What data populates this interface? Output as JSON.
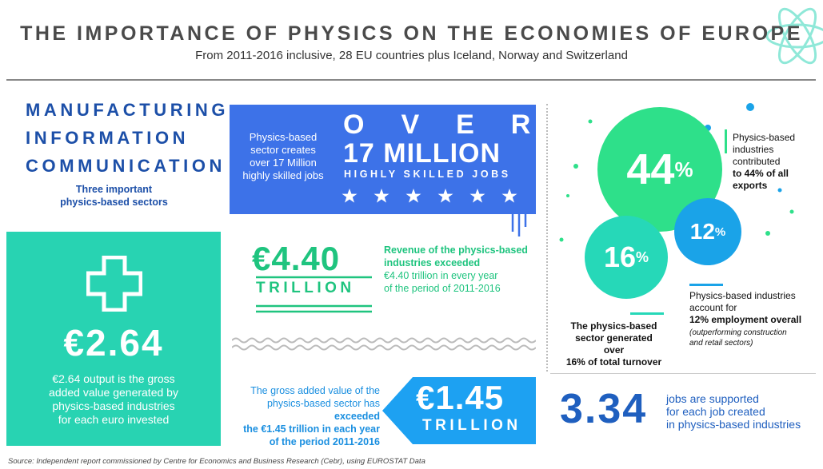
{
  "header": {
    "title": "THE IMPORTANCE OF PHYSICS ON THE ECONOMIES OF EUROPE",
    "subtitle": "From 2011-2016 inclusive, 28 EU countries plus Iceland, Norway and Switzerland"
  },
  "sectors": {
    "lines": [
      "MANUFACTURING",
      "INFORMATION",
      "COMMUNICATION"
    ],
    "caption": [
      "Three important",
      "physics-based sectors"
    ]
  },
  "jobs": {
    "text": [
      "Physics-based",
      "sector creates",
      "over 17 Million",
      "highly skilled jobs"
    ],
    "over": "OVER",
    "figure": "17 MILLION",
    "label": "HIGHLY SKILLED JOBS"
  },
  "gva": {
    "figure": "€2.64",
    "text": [
      "€2.64 output is the gross",
      "added value generated by",
      "physics-based industries",
      "for each euro invested"
    ]
  },
  "revenue": {
    "figure": "€4.40",
    "unit": "TRILLION",
    "heading": [
      "Revenue of the physics-based",
      "industries exceeded"
    ],
    "text": [
      "€4.40 trillion in every year",
      "of the period of 2011-2016"
    ]
  },
  "gross_value": {
    "text_start": [
      "The gross added value of the",
      "physics-based sector has"
    ],
    "text_bold": [
      "exceeded",
      "the €1.45 trillion in each year",
      "of the period 2011-2016"
    ],
    "figure": "€1.45",
    "unit": "TRILLION"
  },
  "exports": {
    "value": "44",
    "unit": "%",
    "text": [
      "Physics-based",
      "industries",
      "contributed"
    ],
    "bold": [
      "to 44% of all",
      "exports"
    ]
  },
  "employment": {
    "value": "12",
    "unit": "%",
    "text": [
      "Physics-based industries",
      "account for"
    ],
    "bold": "12% employment overall",
    "note": [
      "(outperforming construction",
      "and retail sectors)"
    ]
  },
  "turnover": {
    "value": "16",
    "unit": "%",
    "text": [
      "The physics-based",
      "sector generated over",
      "16% of total turnover"
    ]
  },
  "jobs_ratio": {
    "figure": "3.34",
    "text": [
      "jobs are supported",
      "for each job created",
      "in physics-based industries"
    ]
  },
  "source": "Source: Independent report commissioned by Centre for Economics and Business Research (Cebr), using EUROSTAT Data"
}
